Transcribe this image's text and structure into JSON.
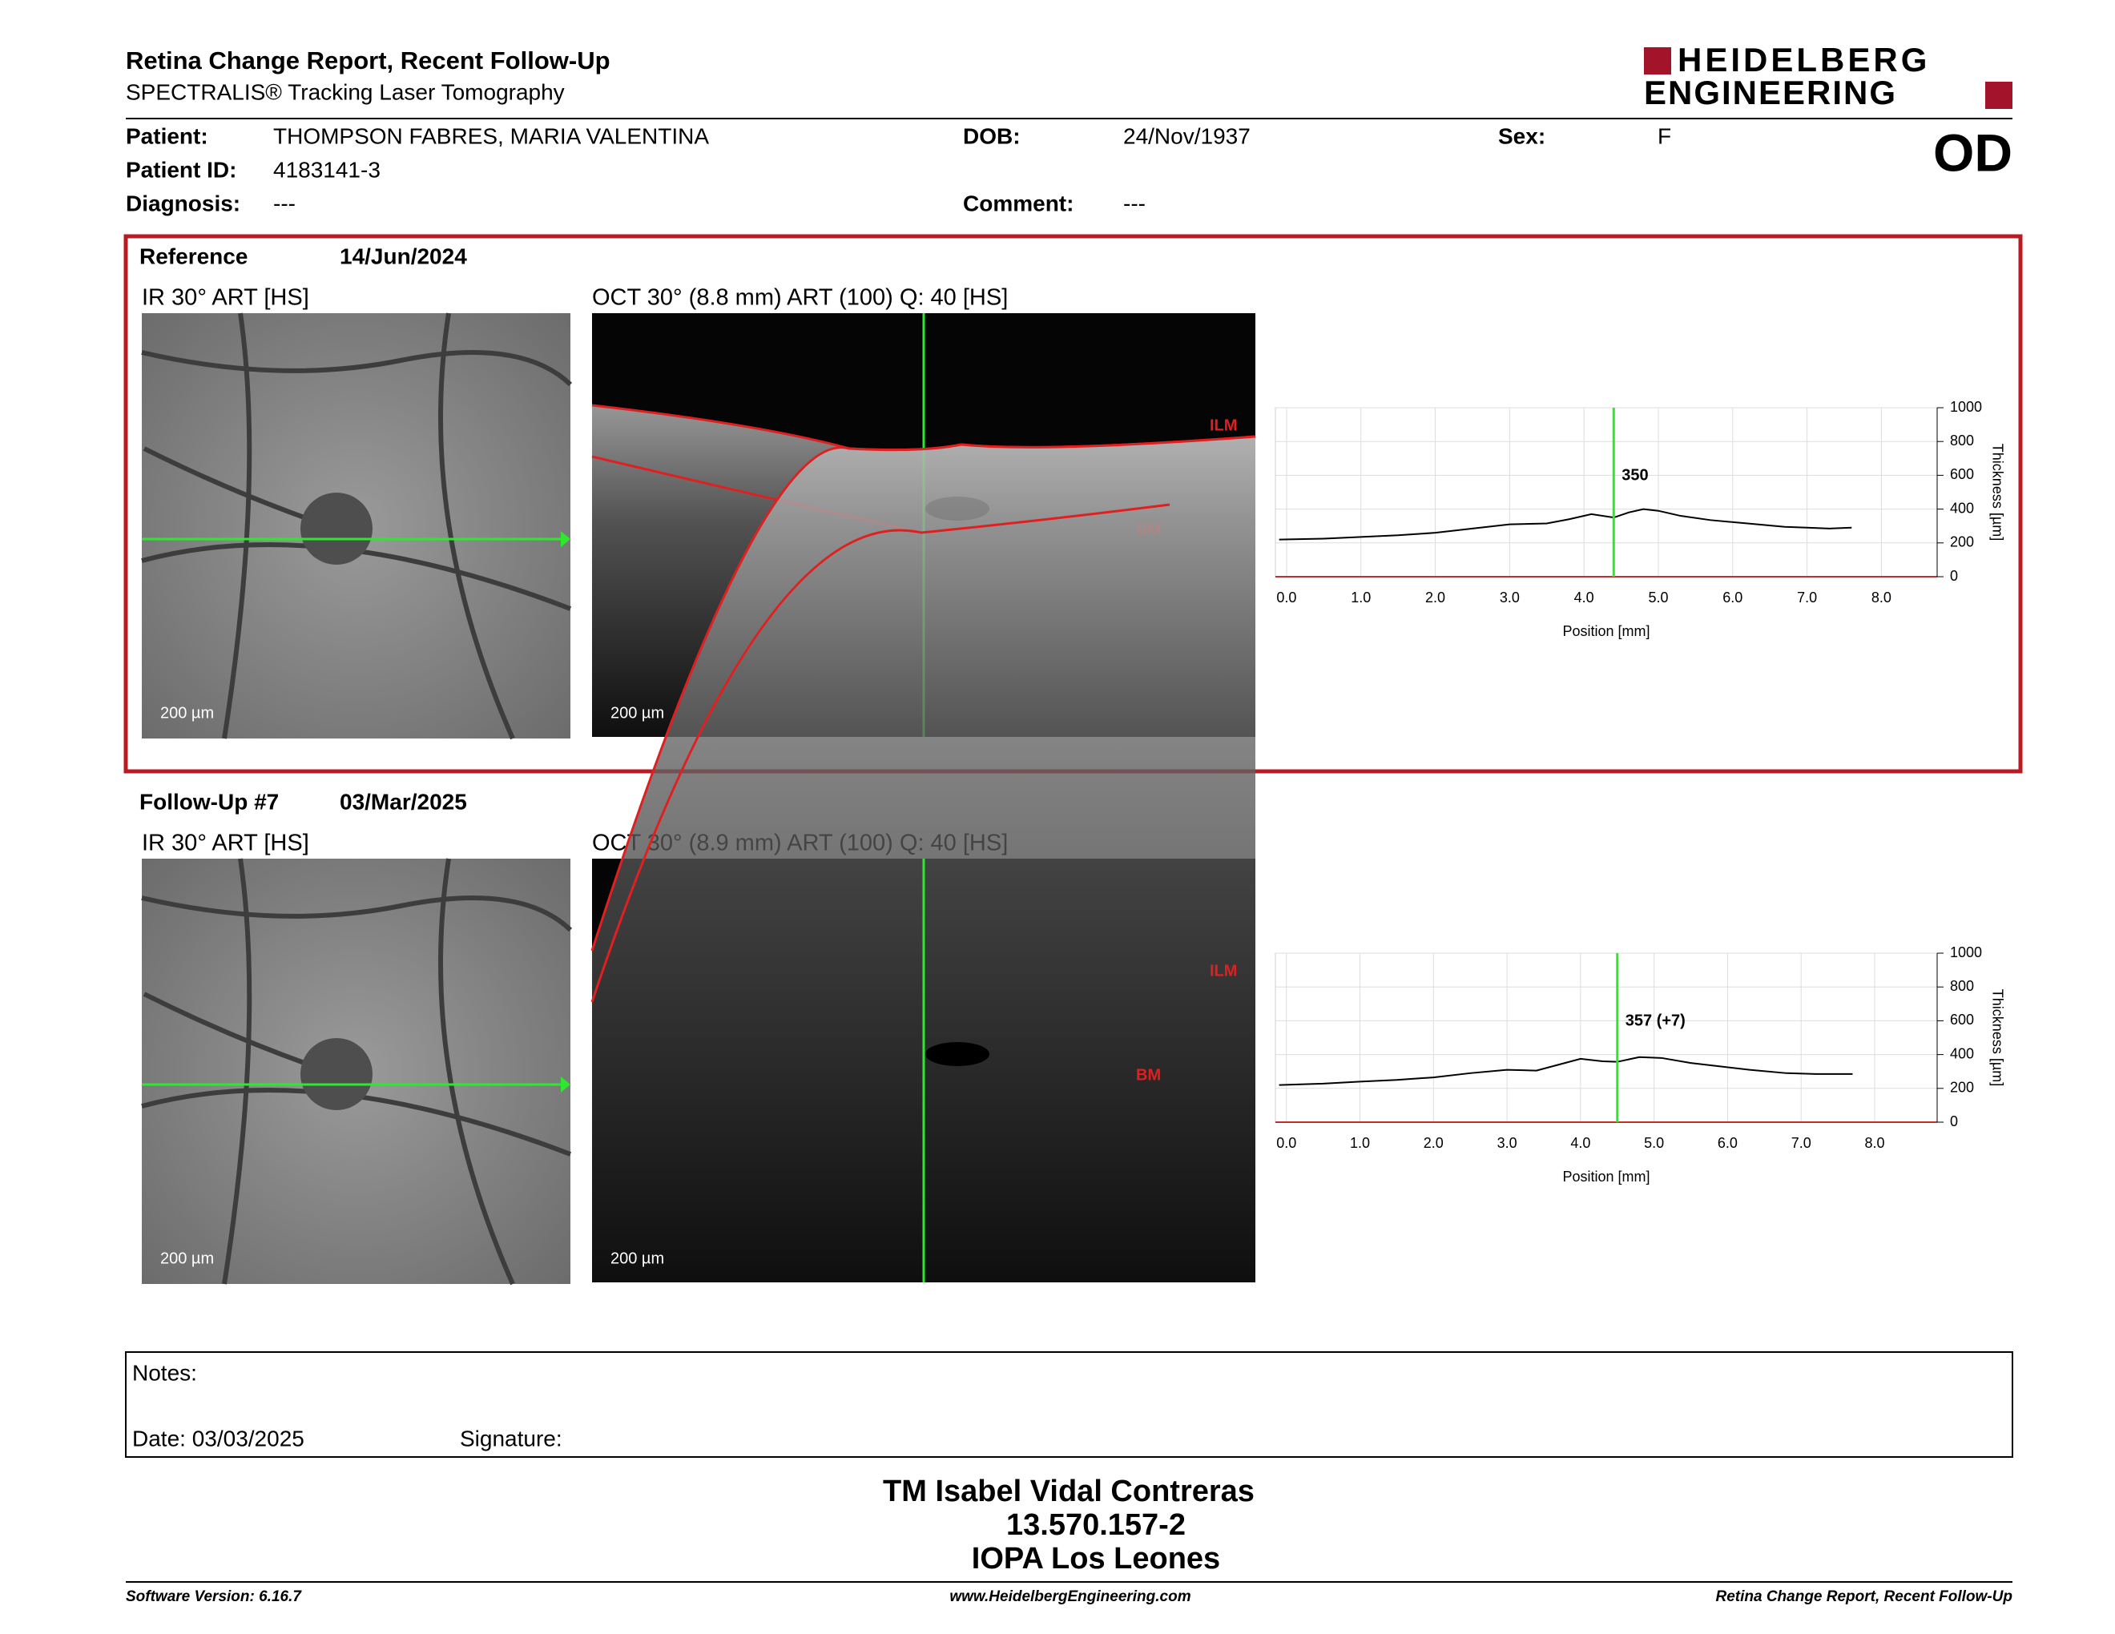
{
  "header": {
    "title": "Retina Change Report, Recent Follow-Up",
    "subtitle": "SPECTRALIS® Tracking Laser Tomography",
    "logo_line1": "HEIDELBERG",
    "logo_line2": "ENGINEERING",
    "eye": "OD"
  },
  "patient": {
    "patient_label": "Patient:",
    "patient": "THOMPSON FABRES, MARIA VALENTINA",
    "id_label": "Patient ID:",
    "id": "4183141-3",
    "diagnosis_label": "Diagnosis:",
    "diagnosis": "---",
    "dob_label": "DOB:",
    "dob": "24/Nov/1937",
    "comment_label": "Comment:",
    "comment": "---",
    "sex_label": "Sex:",
    "sex": "F"
  },
  "exams": [
    {
      "label": "Reference",
      "date": "14/Jun/2024",
      "ir_title": "IR 30° ART [HS]",
      "ir_scale": "200 µm",
      "oct_title": "OCT 30° (8.8 mm) ART (100) Q: 40 [HS]",
      "oct_scale": "200 µm",
      "ilm": "ILM",
      "bm": "BM",
      "chart": {
        "type": "line",
        "xlabel": "Position [mm]",
        "ylabel": "Thickness [µm]",
        "xlim": [
          -0.15,
          8.75
        ],
        "xticks": [
          {
            "value": 0,
            "label": "0.0"
          },
          {
            "value": 1,
            "label": "1.0"
          },
          {
            "value": 2,
            "label": "2.0"
          },
          {
            "value": 3,
            "label": "3.0"
          },
          {
            "value": 4,
            "label": "4.0"
          },
          {
            "value": 5,
            "label": "5.0"
          },
          {
            "value": 6,
            "label": "6.0"
          },
          {
            "value": 7,
            "label": "7.0"
          },
          {
            "value": 8,
            "label": "8.0"
          }
        ],
        "ylim": [
          0,
          1000
        ],
        "yticks": [
          0,
          200,
          400,
          600,
          800,
          1000
        ],
        "marker_x": 4.4,
        "marker_value": 350,
        "x": [
          -0.1,
          0.5,
          1.0,
          1.5,
          2.0,
          2.5,
          3.0,
          3.5,
          3.8,
          4.1,
          4.4,
          4.6,
          4.8,
          5.0,
          5.3,
          5.7,
          6.2,
          6.7,
          7.0,
          7.3,
          7.6
        ],
        "values": [
          220,
          225,
          235,
          245,
          260,
          285,
          310,
          315,
          340,
          370,
          350,
          380,
          400,
          390,
          360,
          335,
          315,
          295,
          290,
          285,
          290
        ]
      }
    },
    {
      "label": "Follow-Up #7",
      "date": "03/Mar/2025",
      "ir_title": "IR 30° ART [HS]",
      "ir_scale": "200 µm",
      "oct_title": "OCT 30° (8.9 mm) ART (100) Q: 40 [HS]",
      "oct_scale": "200 µm",
      "ilm": "ILM",
      "bm": "BM",
      "chart": {
        "type": "line",
        "xlabel": "Position [mm]",
        "ylabel": "Thickness [µm]",
        "xlim": [
          -0.15,
          8.85
        ],
        "xticks": [
          {
            "value": 0,
            "label": "0.0"
          },
          {
            "value": 1,
            "label": "1.0"
          },
          {
            "value": 2,
            "label": "2.0"
          },
          {
            "value": 3,
            "label": "3.0"
          },
          {
            "value": 4,
            "label": "4.0"
          },
          {
            "value": 5,
            "label": "5.0"
          },
          {
            "value": 6,
            "label": "6.0"
          },
          {
            "value": 7,
            "label": "7.0"
          },
          {
            "value": 8,
            "label": "8.0"
          }
        ],
        "ylim": [
          0,
          1000
        ],
        "yticks": [
          0,
          200,
          400,
          600,
          800,
          1000
        ],
        "marker_x": 4.5,
        "marker_value": 357,
        "marker_label": "357 (+7)",
        "x": [
          -0.1,
          0.5,
          1.0,
          1.5,
          2.0,
          2.5,
          3.0,
          3.4,
          3.7,
          4.0,
          4.3,
          4.5,
          4.8,
          5.1,
          5.5,
          5.9,
          6.3,
          6.8,
          7.2,
          7.7
        ],
        "values": [
          220,
          228,
          240,
          250,
          265,
          290,
          310,
          305,
          340,
          375,
          360,
          357,
          385,
          380,
          350,
          330,
          310,
          290,
          285,
          285
        ]
      }
    }
  ],
  "notes": {
    "label": "Notes:",
    "date": "Date: 03/03/2025",
    "signature": "Signature:"
  },
  "signer": {
    "name": "TM Isabel Vidal Contreras",
    "id": "13.570.157-2",
    "place": "IOPA Los Leones"
  },
  "footer": {
    "left": "Software Version: 6.16.7",
    "center": "www.HeidelbergEngineering.com",
    "right": "Retina Change Report, Recent Follow-Up"
  }
}
